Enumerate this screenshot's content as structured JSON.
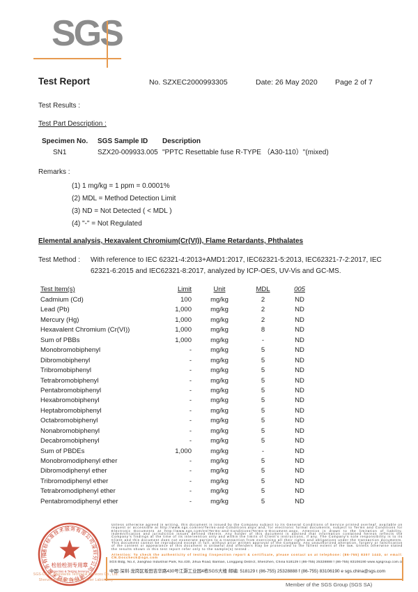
{
  "logo": {
    "text": "SGS"
  },
  "header": {
    "title": "Test Report",
    "report_no": "No. SZXEC2000993305",
    "date": "Date: 26 May 2020",
    "page": "Page 2 of 7"
  },
  "test_results_label": "Test Results :",
  "test_part": {
    "heading": "Test Part Description :",
    "columns": [
      "Specimen No.",
      "SGS Sample ID",
      "Description"
    ],
    "row": {
      "specimen_no": "SN1",
      "sample_id": "SZX20-009933.005",
      "description": "\"PPTC Resettable fuse R-TYPE （A30-110）\"(mixed)"
    }
  },
  "remarks": {
    "heading": "Remarks :",
    "items": [
      "(1) 1 mg/kg = 1 ppm = 0.0001%",
      "(2) MDL = Method Detection Limit",
      "(3) ND = Not Detected ( < MDL )",
      "(4) \"-\" = Not Regulated"
    ]
  },
  "section": {
    "heading": "Elemental analysis, Hexavalent Chromium(Cr(VI)), Flame Retardants, Phthalates",
    "test_method_label": "Test Method :",
    "test_method_text": "With reference to IEC 62321-4:2013+AMD1:2017, IEC62321-5:2013, IEC62321-7-2:2017, IEC 62321-6:2015 and IEC62321-8:2017, analyzed by ICP-OES, UV-Vis and GC-MS."
  },
  "results_table": {
    "columns": [
      "Test Item(s)",
      "Limit",
      "Unit",
      "MDL",
      "005"
    ],
    "rows": [
      [
        "Cadmium (Cd)",
        "100",
        "mg/kg",
        "2",
        "ND"
      ],
      [
        "Lead (Pb)",
        "1,000",
        "mg/kg",
        "2",
        "ND"
      ],
      [
        "Mercury (Hg)",
        "1,000",
        "mg/kg",
        "2",
        "ND"
      ],
      [
        "Hexavalent Chromium (Cr(VI))",
        "1,000",
        "mg/kg",
        "8",
        "ND"
      ],
      [
        "Sum of PBBs",
        "1,000",
        "mg/kg",
        "-",
        "ND"
      ],
      [
        "Monobromobiphenyl",
        "-",
        "mg/kg",
        "5",
        "ND"
      ],
      [
        "Dibromobiphenyl",
        "-",
        "mg/kg",
        "5",
        "ND"
      ],
      [
        "Tribromobiphenyl",
        "-",
        "mg/kg",
        "5",
        "ND"
      ],
      [
        "Tetrabromobiphenyl",
        "-",
        "mg/kg",
        "5",
        "ND"
      ],
      [
        "Pentabromobiphenyl",
        "-",
        "mg/kg",
        "5",
        "ND"
      ],
      [
        "Hexabromobiphenyl",
        "-",
        "mg/kg",
        "5",
        "ND"
      ],
      [
        "Heptabromobiphenyl",
        "-",
        "mg/kg",
        "5",
        "ND"
      ],
      [
        "Octabromobiphenyl",
        "-",
        "mg/kg",
        "5",
        "ND"
      ],
      [
        "Nonabromobiphenyl",
        "-",
        "mg/kg",
        "5",
        "ND"
      ],
      [
        "Decabromobiphenyl",
        "-",
        "mg/kg",
        "5",
        "ND"
      ],
      [
        "Sum of PBDEs",
        "1,000",
        "mg/kg",
        "-",
        "ND"
      ],
      [
        "Monobromodiphenyl ether",
        "-",
        "mg/kg",
        "5",
        "ND"
      ],
      [
        "Dibromodiphenyl ether",
        "-",
        "mg/kg",
        "5",
        "ND"
      ],
      [
        "Tribromodiphenyl ether",
        "-",
        "mg/kg",
        "5",
        "ND"
      ],
      [
        "Tetrabromodiphenyl ether",
        "-",
        "mg/kg",
        "5",
        "ND"
      ],
      [
        "Pentabromodiphenyl ether",
        "-",
        "mg/kg",
        "5",
        "ND"
      ]
    ]
  },
  "footer": {
    "legal_lines": [
      "Unless otherwise agreed in writing, this document is issued by the Company subject to its General Conditions of Service printed",
      "overleaf, available on request or accessible at http://www.sgs.com/en/Terms-and-Conditions.aspx and, for electronic format documents,",
      "subject to Terms and Conditions for Electronic Documents at http://www.sgs.com/en/Terms-and-Conditions/Terms-e-Document.aspx.",
      "Attention is drawn to the limitation of liability, indemnification and jurisdiction issues defined therein. Any holder of this document is",
      "advised that information contained hereon reflects the Company's findings at the time of its intervention only and within the limits of",
      "Client's instructions, if any. The Company's sole responsibility is to its Client and this document does not exonerate parties to a",
      "transaction from exercising all their rights and obligations under the transaction documents. This document cannot be reproduced",
      "except in full, without prior written approval of the Company. Any unauthorized alteration, forgery or falsification of the content or",
      "appearance of this document is unlawful and offenders may be prosecuted to the fullest extent of the law. Unless otherwise stated the",
      "results shown in this test report refer only to the sample(s) tested ."
    ],
    "attention_lines": [
      "Attention: To check the authenticity of testing /inspection report & certificate, please contact us at telephone: (86-755) 8307 1443,",
      "or email: CN.Doccheck@sgs.com"
    ],
    "address_en": "SGS Bldg, No.4, Jianghao Industrial Park, No.430, Jihua Road, Bantian, Longgang District, Shenzhen, China  518129   t (86-755) 25328888   f (86-755) 83106190   www.sgsgroup.com.cn",
    "address_cn": "中国·深圳·龙岗区坂田吉华路430号江灏工业园4栋SGS大楼   邮编: 518129   t (86-755) 25328888  f (86-755) 83106190  e sgs.china@sgs.com",
    "member": "Member of the SGS Group (SGS SA)",
    "stamp": {
      "ring_text": "通标标准技术服务有限公司深圳分公司 · 通标标准技术服务有限公司",
      "line_cn": "检验检测专用章",
      "line_en": "Inspection & Testing Services",
      "company_line1": "SGS-CSTC Standards Technical Services Co., Ltd.",
      "company_line2": "Shenzhen Branch Testing Center Laboratory"
    },
    "colors": {
      "accent_orange": "#e79a4f",
      "stamp_red": "#c8402c",
      "attention_orange": "#e77c1e",
      "logo_gray": "#8c8c8c"
    }
  }
}
